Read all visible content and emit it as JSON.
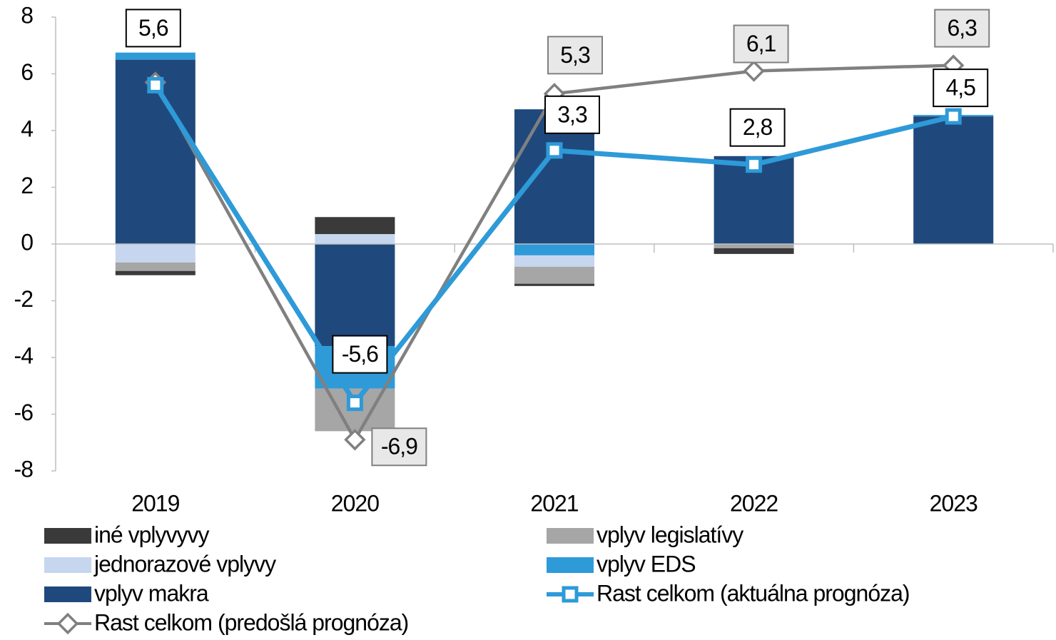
{
  "chart_data": {
    "type": "bar",
    "categories": [
      "2019",
      "2020",
      "2021",
      "2022",
      "2023"
    ],
    "stacked": true,
    "series": [
      {
        "name": "iné vplyvyvy",
        "color": "#3a3a3a",
        "values": [
          -0.15,
          0.6,
          -0.08,
          -0.2,
          0
        ]
      },
      {
        "name": "vplyv legislatívy",
        "color": "#a6a6a6",
        "values": [
          -0.3,
          -1.5,
          -0.6,
          -0.15,
          0
        ]
      },
      {
        "name": "jednorazové vplyvy",
        "color": "#c6d6ee",
        "values": [
          -0.65,
          0.35,
          -0.4,
          0,
          0
        ]
      },
      {
        "name": "vplyv EDS",
        "color": "#2e9ad8",
        "values": [
          0.25,
          -1.5,
          -0.4,
          0,
          0.05
        ]
      },
      {
        "name": "vplyv makra",
        "color": "#1f497d",
        "values": [
          6.5,
          -3.6,
          4.75,
          3.1,
          4.5
        ]
      },
      {
        "name": "Rast celkom (aktuálna prognóza)",
        "type": "line",
        "color": "#2e9ad8",
        "values": [
          5.6,
          -5.6,
          3.3,
          2.8,
          4.5
        ],
        "value_labels": [
          "5,6",
          "-5,6",
          "3,3",
          "2,8",
          "4,5"
        ]
      },
      {
        "name": "Rast celkom (predošlá prognóza)",
        "type": "line",
        "color": "#808080",
        "values": [
          5.7,
          -6.9,
          5.3,
          6.1,
          6.3
        ],
        "value_labels": [
          null,
          "-6,9",
          "5,3",
          "6,1",
          "6,3"
        ]
      }
    ],
    "ylim": [
      -8,
      8
    ],
    "yticks": [
      -8,
      -6,
      -4,
      -2,
      0,
      2,
      4,
      6,
      8
    ]
  }
}
